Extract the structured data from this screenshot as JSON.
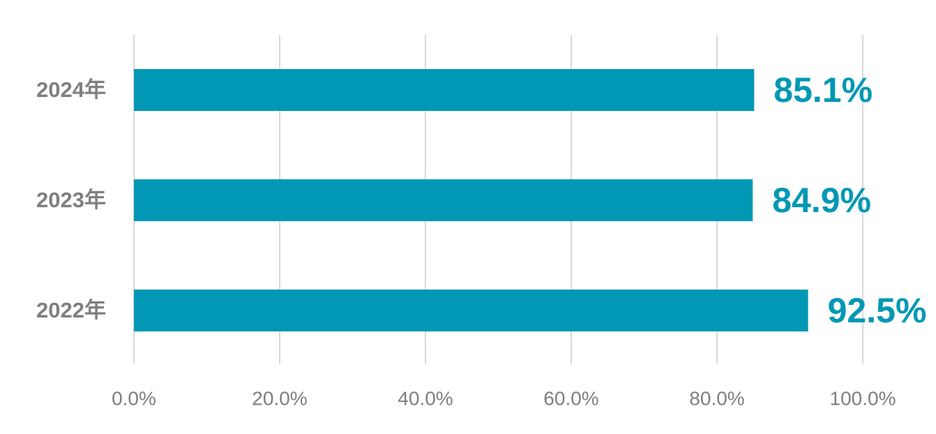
{
  "chart_data": {
    "type": "bar",
    "orientation": "horizontal",
    "categories": [
      "2024年",
      "2023年",
      "2022年"
    ],
    "values": [
      85.1,
      84.9,
      92.5
    ],
    "value_labels": [
      "85.1%",
      "84.9%",
      "92.5%"
    ],
    "color": "#0098b4",
    "xlim": [
      0,
      100
    ],
    "xticks": [
      {
        "value": 0,
        "label": "0.0%"
      },
      {
        "value": 20,
        "label": "20.0%"
      },
      {
        "value": 40,
        "label": "40.0%"
      },
      {
        "value": 60,
        "label": "60.0%"
      },
      {
        "value": 80,
        "label": "80.0%"
      },
      {
        "value": 100,
        "label": "100.0%"
      }
    ],
    "grid": true
  }
}
